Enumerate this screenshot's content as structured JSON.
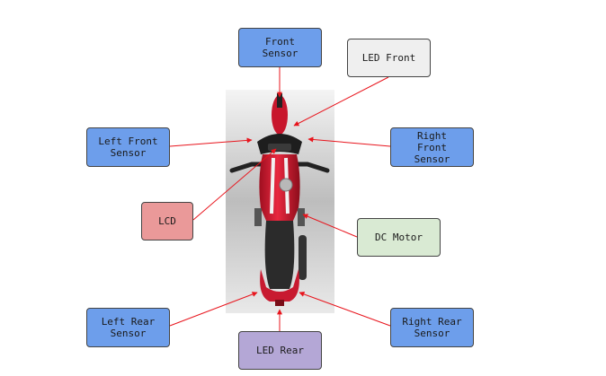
{
  "diagram": {
    "labels": {
      "front_sensor": "Front\nSensor",
      "led_front": "LED Front",
      "left_front_sensor": "Left Front\nSensor",
      "right_front_sensor": "Right\nFront\nSensor",
      "lcd": "LCD",
      "dc_motor": "DC Motor",
      "left_rear_sensor": "Left Rear\nSensor",
      "right_rear_sensor": "Right Rear\nSensor",
      "led_rear": "LED Rear"
    },
    "colors": {
      "sensor_fill": "#6d9eeb",
      "led_front_fill": "#efefef",
      "lcd_fill": "#ea9999",
      "motor_fill": "#d9ead3",
      "led_rear_fill": "#b4a7d6",
      "arrow": "#e8141c",
      "bike_body": "#d81e34"
    },
    "image_subject": "motorcycle-top-view"
  }
}
